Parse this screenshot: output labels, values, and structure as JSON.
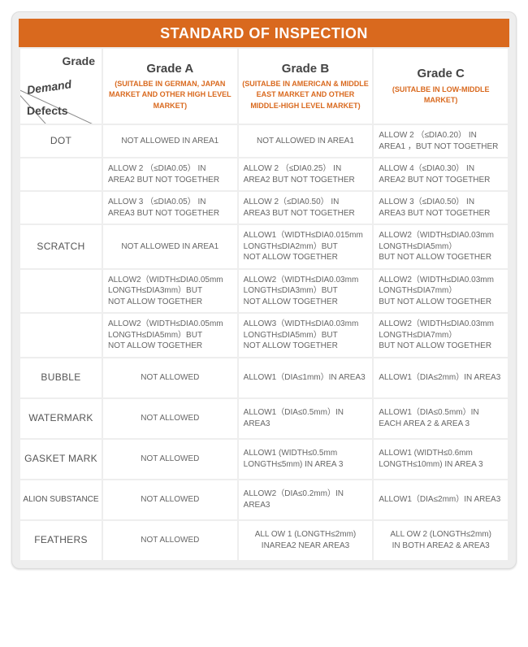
{
  "title": "STANDARD OF INSPECTION",
  "corner": {
    "grade": "Grade",
    "demand": "Demand",
    "defects": "Defects"
  },
  "grades": [
    {
      "name": "Grade A",
      "desc": "(SUITALBE IN GERMAN, JAPAN MARKET AND OTHER HIGH LEVEL MARKET)"
    },
    {
      "name": "Grade B",
      "desc": "(SUITALBE IN AMERICAN & MIDDLE EAST MARKET AND OTHER MIDDLE-HIGH LEVEL MARKET)"
    },
    {
      "name": "Grade C",
      "desc": "(SUITALBE IN LOW-MIDDLE MARKET)"
    }
  ],
  "rows": [
    {
      "label": "DOT",
      "a": [
        "NOT ALLOWED IN AREA1"
      ],
      "b": [
        "NOT ALLOWED IN AREA1"
      ],
      "c": [
        "ALLOW 2 （≤DIA0.20） IN AREA1 ，BUT NOT TOGETHER"
      ],
      "acenter": true,
      "bcenter": true
    },
    {
      "label": "",
      "a": [
        "ALLOW 2 （≤DIA0.05） IN AREA2 BUT NOT TOGETHER"
      ],
      "b": [
        "ALLOW 2 （≤DIA0.25） IN AREA2 BUT NOT TOGETHER"
      ],
      "c": [
        "ALLOW 4（≤DIA0.30） IN AREA2  BUT NOT TOGETHER"
      ]
    },
    {
      "label": "",
      "a": [
        "ALLOW 3 （≤DIA0.05） IN AREA3 BUT NOT TOGETHER"
      ],
      "b": [
        "ALLOW 2（≤DIA0.50） IN AREA3 BUT NOT TOGETHER"
      ],
      "c": [
        "ALLOW 3（≤DIA0.50） IN AREA3 BUT NOT TOGETHER"
      ]
    },
    {
      "label": "SCRATCH",
      "a": [
        "NOT ALLOWED IN AREA1"
      ],
      "b": [
        "ALLOW1（WIDTH≤DIA0.015mm LONGTH≤DIA2mm）BUT",
        "NOT ALLOW TOGETHER"
      ],
      "c": [
        "ALLOW2（WIDTH≤DIA0.03mm LONGTH≤DIA5mm）",
        " BUT NOT ALLOW TOGETHER"
      ],
      "acenter": true
    },
    {
      "label": "",
      "a": [
        "ALLOW2（WIDTH≤DIA0.05mm LONGTH≤DIA3mm）BUT",
        "NOT ALLOW TOGETHER"
      ],
      "b": [
        "ALLOW2（WIDTH≤DIA0.03mm LONGTH≤DIA3mm）BUT",
        "NOT ALLOW TOGETHER"
      ],
      "c": [
        "ALLOW2（WIDTH≤DIA0.03mm LONGTH≤DIA7mm）",
        "BUT NOT ALLOW TOGETHER"
      ]
    },
    {
      "label": "",
      "a": [
        "ALLOW2（WIDTH≤DIA0.05mm LONGTH≤DIA5mm）BUT",
        "NOT ALLOW TOGETHER"
      ],
      "b": [
        "ALLOW3（WIDTH≤DIA0.03mm LONGTH≤DIA5mm）BUT",
        "NOT ALLOW TOGETHER"
      ],
      "c": [
        "ALLOW2（WIDTH≤DIA0.03mm LONGTH≤DIA7mm）",
        "BUT NOT ALLOW TOGETHER"
      ]
    },
    {
      "label": "BUBBLE",
      "tall": true,
      "a": [
        "NOT ALLOWED"
      ],
      "b": [
        "ALLOW1（DIA≤1mm）IN AREA3"
      ],
      "c": [
        "ALLOW1（DIA≤2mm）IN AREA3"
      ],
      "acenter": true
    },
    {
      "label": "WATERMARK",
      "tall": true,
      "a": [
        "NOT ALLOWED"
      ],
      "b": [
        "ALLOW1（DIA≤0.5mm）IN AREA3"
      ],
      "c": [
        "ALLOW1（DIA≤0.5mm）IN EACH AREA 2 & AREA 3"
      ],
      "acenter": true
    },
    {
      "label": "GASKET MARK",
      "tall": true,
      "a": [
        "NOT ALLOWED"
      ],
      "b": [
        " ALLOW1 (WIDTH≤0.5mm",
        " LONGTH≤5mm) IN AREA 3"
      ],
      "c": [
        " ALLOW1 (WIDTH≤0.6mm",
        " LONGTH≤10mm) IN AREA 3"
      ],
      "acenter": true
    },
    {
      "label": "ALION SUBSTANCE",
      "small": true,
      "tall": true,
      "a": [
        "NOT ALLOWED"
      ],
      "b": [
        "ALLOW2（DIA≤0.2mm）IN AREA3"
      ],
      "c": [
        "ALLOW1（DIA≤2mm）IN AREA3"
      ],
      "acenter": true
    },
    {
      "label": "FEATHERS",
      "tall": true,
      "a": [
        "NOT ALLOWED"
      ],
      "b": [
        "ALL OW 1 (LONGTH≤2mm)",
        "INAREA2 NEAR  AREA3"
      ],
      "c": [
        "ALL OW 2 (LONGTH≤2mm)",
        "IN BOTH AREA2 & AREA3"
      ],
      "acenter": true,
      "bcenter": true,
      "ccenter": true
    }
  ],
  "colors": {
    "accent": "#d9691e",
    "bg": "#eeeeee"
  }
}
